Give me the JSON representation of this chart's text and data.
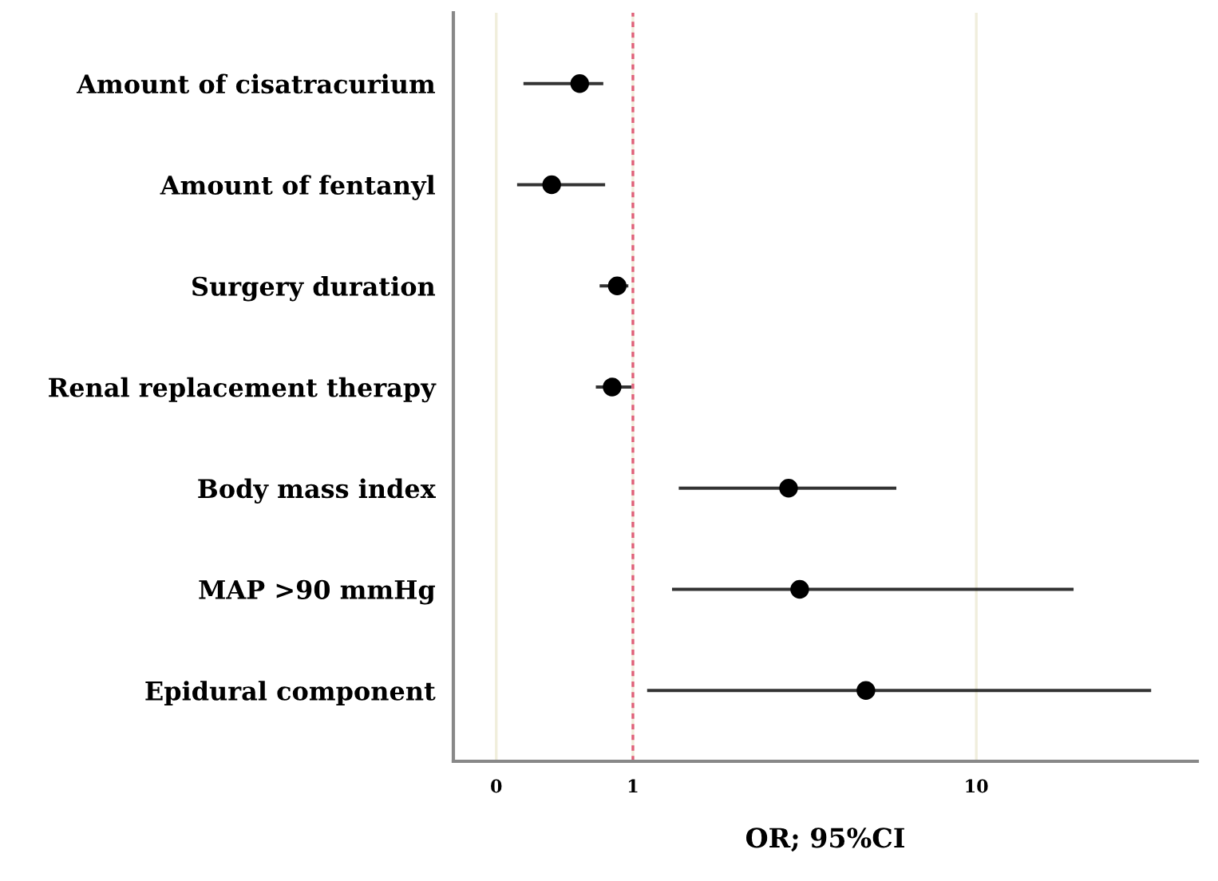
{
  "chart_data": {
    "type": "scatter",
    "orientation": "horizontal",
    "xlabel": "OR; 95%CI",
    "categories": [
      "Amount of cisatracurium",
      "Amount of fentanyl",
      "Surgery duration",
      "Renal replacement therapy",
      "Body mass index",
      "MAP >90 mmHg",
      "Epidural component"
    ],
    "series": [
      {
        "color": "#000000",
        "values": [
          0.7,
          0.58,
          0.9,
          0.87,
          2.84,
          3.06,
          4.77
        ],
        "errors": [
          [
            0.48,
            0.82
          ],
          [
            0.46,
            0.83
          ],
          [
            0.8,
            0.97
          ],
          [
            0.78,
            0.99
          ],
          [
            1.36,
            5.85
          ],
          [
            1.3,
            19.2
          ],
          [
            1.1,
            32.3
          ]
        ]
      }
    ],
    "log": "x",
    "xlim": [
      0.3,
      44
    ],
    "xticks": [
      {
        "value": 0.4,
        "label": "0"
      },
      1,
      10
    ],
    "grid": "x",
    "marker": "circle",
    "ref_lines": [
      {
        "axis": "x",
        "value": 1,
        "color": "#e0607a",
        "line_style": "dashed"
      }
    ]
  }
}
